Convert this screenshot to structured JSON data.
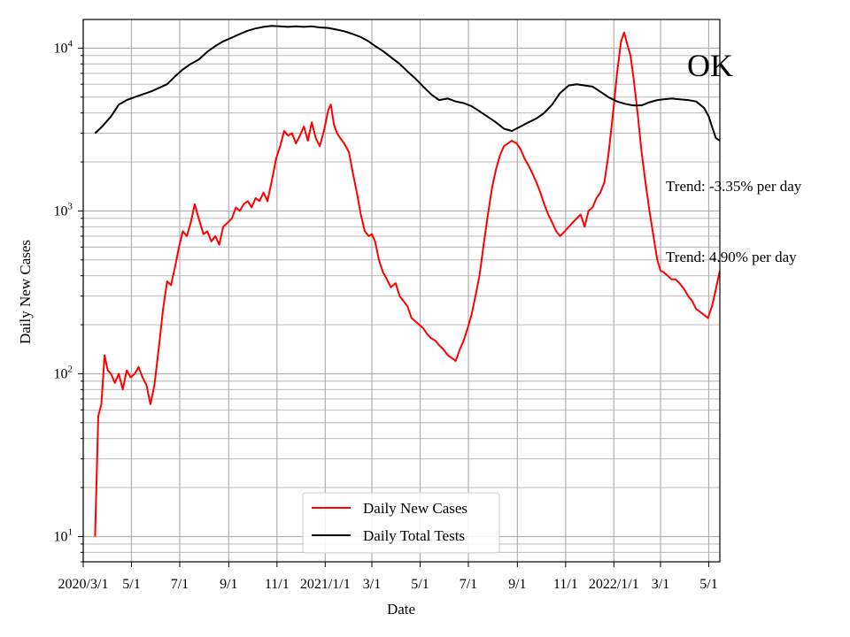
{
  "chart_data": {
    "type": "line",
    "title": "OK",
    "xlabel": "Date",
    "ylabel": "Daily New Cases",
    "yscale": "log",
    "ylim": [
      7,
      15000
    ],
    "xlim": [
      "2020-03-01",
      "2022-05-15"
    ],
    "grid": "both (major and minor)",
    "legend_position": "lower-center",
    "y_tick_labels": [
      {
        "value": 10,
        "base": "10",
        "exp": "1"
      },
      {
        "value": 100,
        "base": "10",
        "exp": "2"
      },
      {
        "value": 1000,
        "base": "10",
        "exp": "3"
      },
      {
        "value": 10000,
        "base": "10",
        "exp": "4"
      }
    ],
    "x_ticks": [
      {
        "date": "2020-03-01",
        "label": "2020/3/1"
      },
      {
        "date": "2020-05-01",
        "label": "5/1"
      },
      {
        "date": "2020-07-01",
        "label": "7/1"
      },
      {
        "date": "2020-09-01",
        "label": "9/1"
      },
      {
        "date": "2020-11-01",
        "label": "11/1"
      },
      {
        "date": "2021-01-01",
        "label": "2021/1/1"
      },
      {
        "date": "2021-03-01",
        "label": "3/1"
      },
      {
        "date": "2021-05-01",
        "label": "5/1"
      },
      {
        "date": "2021-07-01",
        "label": "7/1"
      },
      {
        "date": "2021-09-01",
        "label": "9/1"
      },
      {
        "date": "2021-11-01",
        "label": "11/1"
      },
      {
        "date": "2022-01-01",
        "label": "2022/1/1"
      },
      {
        "date": "2022-03-01",
        "label": "3/1"
      },
      {
        "date": "2022-05-01",
        "label": "5/1"
      }
    ],
    "annotations": [
      "Trend: -3.35% per day",
      "Trend: 4.90% per day"
    ],
    "series": [
      {
        "name": "Daily New Cases",
        "color": "#ff0000",
        "points": [
          [
            "2020-03-16",
            10
          ],
          [
            "2020-03-20",
            55
          ],
          [
            "2020-03-24",
            65
          ],
          [
            "2020-03-28",
            130
          ],
          [
            "2020-04-01",
            105
          ],
          [
            "2020-04-05",
            100
          ],
          [
            "2020-04-10",
            88
          ],
          [
            "2020-04-15",
            100
          ],
          [
            "2020-04-20",
            80
          ],
          [
            "2020-04-25",
            105
          ],
          [
            "2020-04-30",
            95
          ],
          [
            "2020-05-05",
            100
          ],
          [
            "2020-05-10",
            110
          ],
          [
            "2020-05-15",
            95
          ],
          [
            "2020-05-20",
            85
          ],
          [
            "2020-05-25",
            65
          ],
          [
            "2020-05-30",
            85
          ],
          [
            "2020-06-05",
            150
          ],
          [
            "2020-06-10",
            250
          ],
          [
            "2020-06-15",
            370
          ],
          [
            "2020-06-20",
            350
          ],
          [
            "2020-06-25",
            450
          ],
          [
            "2020-06-30",
            600
          ],
          [
            "2020-07-05",
            750
          ],
          [
            "2020-07-10",
            700
          ],
          [
            "2020-07-15",
            850
          ],
          [
            "2020-07-20",
            1100
          ],
          [
            "2020-07-25",
            900
          ],
          [
            "2020-07-31",
            720
          ],
          [
            "2020-08-05",
            750
          ],
          [
            "2020-08-10",
            650
          ],
          [
            "2020-08-15",
            700
          ],
          [
            "2020-08-20",
            620
          ],
          [
            "2020-08-25",
            800
          ],
          [
            "2020-08-31",
            850
          ],
          [
            "2020-09-05",
            900
          ],
          [
            "2020-09-10",
            1050
          ],
          [
            "2020-09-15",
            1000
          ],
          [
            "2020-09-20",
            1100
          ],
          [
            "2020-09-25",
            1150
          ],
          [
            "2020-09-30",
            1050
          ],
          [
            "2020-10-05",
            1200
          ],
          [
            "2020-10-10",
            1150
          ],
          [
            "2020-10-15",
            1300
          ],
          [
            "2020-10-20",
            1150
          ],
          [
            "2020-10-25",
            1500
          ],
          [
            "2020-10-31",
            2100
          ],
          [
            "2020-11-05",
            2500
          ],
          [
            "2020-11-10",
            3100
          ],
          [
            "2020-11-15",
            2900
          ],
          [
            "2020-11-20",
            3000
          ],
          [
            "2020-11-25",
            2600
          ],
          [
            "2020-11-30",
            2900
          ],
          [
            "2020-12-05",
            3300
          ],
          [
            "2020-12-10",
            2700
          ],
          [
            "2020-12-15",
            3500
          ],
          [
            "2020-12-20",
            2800
          ],
          [
            "2020-12-25",
            2500
          ],
          [
            "2020-12-31",
            3200
          ],
          [
            "2021-01-05",
            4200
          ],
          [
            "2021-01-08",
            4500
          ],
          [
            "2021-01-12",
            3400
          ],
          [
            "2021-01-16",
            3000
          ],
          [
            "2021-01-20",
            2800
          ],
          [
            "2021-01-25",
            2600
          ],
          [
            "2021-01-31",
            2300
          ],
          [
            "2021-02-05",
            1700
          ],
          [
            "2021-02-10",
            1300
          ],
          [
            "2021-02-15",
            950
          ],
          [
            "2021-02-20",
            750
          ],
          [
            "2021-02-25",
            700
          ],
          [
            "2021-03-01",
            720
          ],
          [
            "2021-03-05",
            650
          ],
          [
            "2021-03-10",
            500
          ],
          [
            "2021-03-15",
            420
          ],
          [
            "2021-03-20",
            380
          ],
          [
            "2021-03-25",
            340
          ],
          [
            "2021-03-31",
            360
          ],
          [
            "2021-04-05",
            300
          ],
          [
            "2021-04-10",
            280
          ],
          [
            "2021-04-15",
            260
          ],
          [
            "2021-04-20",
            220
          ],
          [
            "2021-04-25",
            210
          ],
          [
            "2021-04-30",
            200
          ],
          [
            "2021-05-05",
            190
          ],
          [
            "2021-05-10",
            175
          ],
          [
            "2021-05-15",
            165
          ],
          [
            "2021-05-20",
            160
          ],
          [
            "2021-05-25",
            150
          ],
          [
            "2021-05-31",
            140
          ],
          [
            "2021-06-05",
            130
          ],
          [
            "2021-06-10",
            125
          ],
          [
            "2021-06-15",
            120
          ],
          [
            "2021-06-20",
            140
          ],
          [
            "2021-06-25",
            160
          ],
          [
            "2021-06-30",
            190
          ],
          [
            "2021-07-05",
            230
          ],
          [
            "2021-07-10",
            300
          ],
          [
            "2021-07-15",
            400
          ],
          [
            "2021-07-20",
            600
          ],
          [
            "2021-07-25",
            900
          ],
          [
            "2021-07-31",
            1400
          ],
          [
            "2021-08-05",
            1800
          ],
          [
            "2021-08-10",
            2200
          ],
          [
            "2021-08-15",
            2500
          ],
          [
            "2021-08-20",
            2600
          ],
          [
            "2021-08-25",
            2700
          ],
          [
            "2021-08-31",
            2600
          ],
          [
            "2021-09-05",
            2400
          ],
          [
            "2021-09-10",
            2100
          ],
          [
            "2021-09-15",
            1900
          ],
          [
            "2021-09-20",
            1700
          ],
          [
            "2021-09-25",
            1500
          ],
          [
            "2021-09-30",
            1300
          ],
          [
            "2021-10-05",
            1100
          ],
          [
            "2021-10-10",
            950
          ],
          [
            "2021-10-15",
            850
          ],
          [
            "2021-10-20",
            750
          ],
          [
            "2021-10-25",
            700
          ],
          [
            "2021-10-31",
            750
          ],
          [
            "2021-11-05",
            800
          ],
          [
            "2021-11-10",
            850
          ],
          [
            "2021-11-15",
            900
          ],
          [
            "2021-11-20",
            950
          ],
          [
            "2021-11-25",
            800
          ],
          [
            "2021-11-30",
            1000
          ],
          [
            "2021-12-05",
            1050
          ],
          [
            "2021-12-10",
            1200
          ],
          [
            "2021-12-15",
            1300
          ],
          [
            "2021-12-20",
            1500
          ],
          [
            "2021-12-25",
            2200
          ],
          [
            "2021-12-31",
            4000
          ],
          [
            "2022-01-05",
            7000
          ],
          [
            "2022-01-10",
            11000
          ],
          [
            "2022-01-14",
            12500
          ],
          [
            "2022-01-18",
            10500
          ],
          [
            "2022-01-22",
            9000
          ],
          [
            "2022-01-26",
            6500
          ],
          [
            "2022-01-31",
            4000
          ],
          [
            "2022-02-05",
            2300
          ],
          [
            "2022-02-10",
            1500
          ],
          [
            "2022-02-15",
            1000
          ],
          [
            "2022-02-20",
            700
          ],
          [
            "2022-02-25",
            500
          ],
          [
            "2022-03-01",
            430
          ],
          [
            "2022-03-05",
            420
          ],
          [
            "2022-03-10",
            400
          ],
          [
            "2022-03-15",
            380
          ],
          [
            "2022-03-20",
            380
          ],
          [
            "2022-03-25",
            360
          ],
          [
            "2022-03-31",
            330
          ],
          [
            "2022-04-05",
            300
          ],
          [
            "2022-04-10",
            280
          ],
          [
            "2022-04-15",
            250
          ],
          [
            "2022-04-20",
            240
          ],
          [
            "2022-04-25",
            230
          ],
          [
            "2022-04-30",
            220
          ],
          [
            "2022-05-05",
            260
          ],
          [
            "2022-05-10",
            330
          ],
          [
            "2022-05-15",
            430
          ]
        ]
      },
      {
        "name": "Daily Total Tests",
        "color": "#000000",
        "points": [
          [
            "2020-03-16",
            3000
          ],
          [
            "2020-03-25",
            3300
          ],
          [
            "2020-04-05",
            3800
          ],
          [
            "2020-04-15",
            4500
          ],
          [
            "2020-04-25",
            4800
          ],
          [
            "2020-05-05",
            5000
          ],
          [
            "2020-05-15",
            5200
          ],
          [
            "2020-05-25",
            5400
          ],
          [
            "2020-06-05",
            5700
          ],
          [
            "2020-06-15",
            6000
          ],
          [
            "2020-06-25",
            6700
          ],
          [
            "2020-07-05",
            7400
          ],
          [
            "2020-07-15",
            8000
          ],
          [
            "2020-07-25",
            8500
          ],
          [
            "2020-08-05",
            9500
          ],
          [
            "2020-08-15",
            10300
          ],
          [
            "2020-08-25",
            11000
          ],
          [
            "2020-09-05",
            11600
          ],
          [
            "2020-09-15",
            12200
          ],
          [
            "2020-09-25",
            12800
          ],
          [
            "2020-10-05",
            13200
          ],
          [
            "2020-10-15",
            13500
          ],
          [
            "2020-10-25",
            13700
          ],
          [
            "2020-11-05",
            13600
          ],
          [
            "2020-11-15",
            13500
          ],
          [
            "2020-11-25",
            13600
          ],
          [
            "2020-12-05",
            13500
          ],
          [
            "2020-12-15",
            13600
          ],
          [
            "2020-12-25",
            13400
          ],
          [
            "2021-01-05",
            13300
          ],
          [
            "2021-01-15",
            13000
          ],
          [
            "2021-01-25",
            12700
          ],
          [
            "2021-02-05",
            12200
          ],
          [
            "2021-02-15",
            11700
          ],
          [
            "2021-02-25",
            11000
          ],
          [
            "2021-03-05",
            10300
          ],
          [
            "2021-03-15",
            9600
          ],
          [
            "2021-03-25",
            8800
          ],
          [
            "2021-04-05",
            8000
          ],
          [
            "2021-04-15",
            7200
          ],
          [
            "2021-04-25",
            6500
          ],
          [
            "2021-05-05",
            5800
          ],
          [
            "2021-05-15",
            5200
          ],
          [
            "2021-05-25",
            4800
          ],
          [
            "2021-06-05",
            4900
          ],
          [
            "2021-06-15",
            4700
          ],
          [
            "2021-06-25",
            4600
          ],
          [
            "2021-07-05",
            4400
          ],
          [
            "2021-07-15",
            4100
          ],
          [
            "2021-07-25",
            3800
          ],
          [
            "2021-08-05",
            3500
          ],
          [
            "2021-08-15",
            3200
          ],
          [
            "2021-08-25",
            3100
          ],
          [
            "2021-09-05",
            3300
          ],
          [
            "2021-09-15",
            3500
          ],
          [
            "2021-09-25",
            3700
          ],
          [
            "2021-10-05",
            4000
          ],
          [
            "2021-10-15",
            4500
          ],
          [
            "2021-10-25",
            5300
          ],
          [
            "2021-11-05",
            5900
          ],
          [
            "2021-11-15",
            6000
          ],
          [
            "2021-11-25",
            5900
          ],
          [
            "2021-12-05",
            5800
          ],
          [
            "2021-12-15",
            5400
          ],
          [
            "2021-12-25",
            5000
          ],
          [
            "2022-01-05",
            4700
          ],
          [
            "2022-01-15",
            4550
          ],
          [
            "2022-01-25",
            4450
          ],
          [
            "2022-02-05",
            4450
          ],
          [
            "2022-02-15",
            4650
          ],
          [
            "2022-02-25",
            4800
          ],
          [
            "2022-03-05",
            4850
          ],
          [
            "2022-03-15",
            4900
          ],
          [
            "2022-03-25",
            4850
          ],
          [
            "2022-04-05",
            4800
          ],
          [
            "2022-04-15",
            4700
          ],
          [
            "2022-04-25",
            4300
          ],
          [
            "2022-05-01",
            3800
          ],
          [
            "2022-05-05",
            3300
          ],
          [
            "2022-05-10",
            2800
          ],
          [
            "2022-05-15",
            2700
          ]
        ]
      }
    ]
  }
}
